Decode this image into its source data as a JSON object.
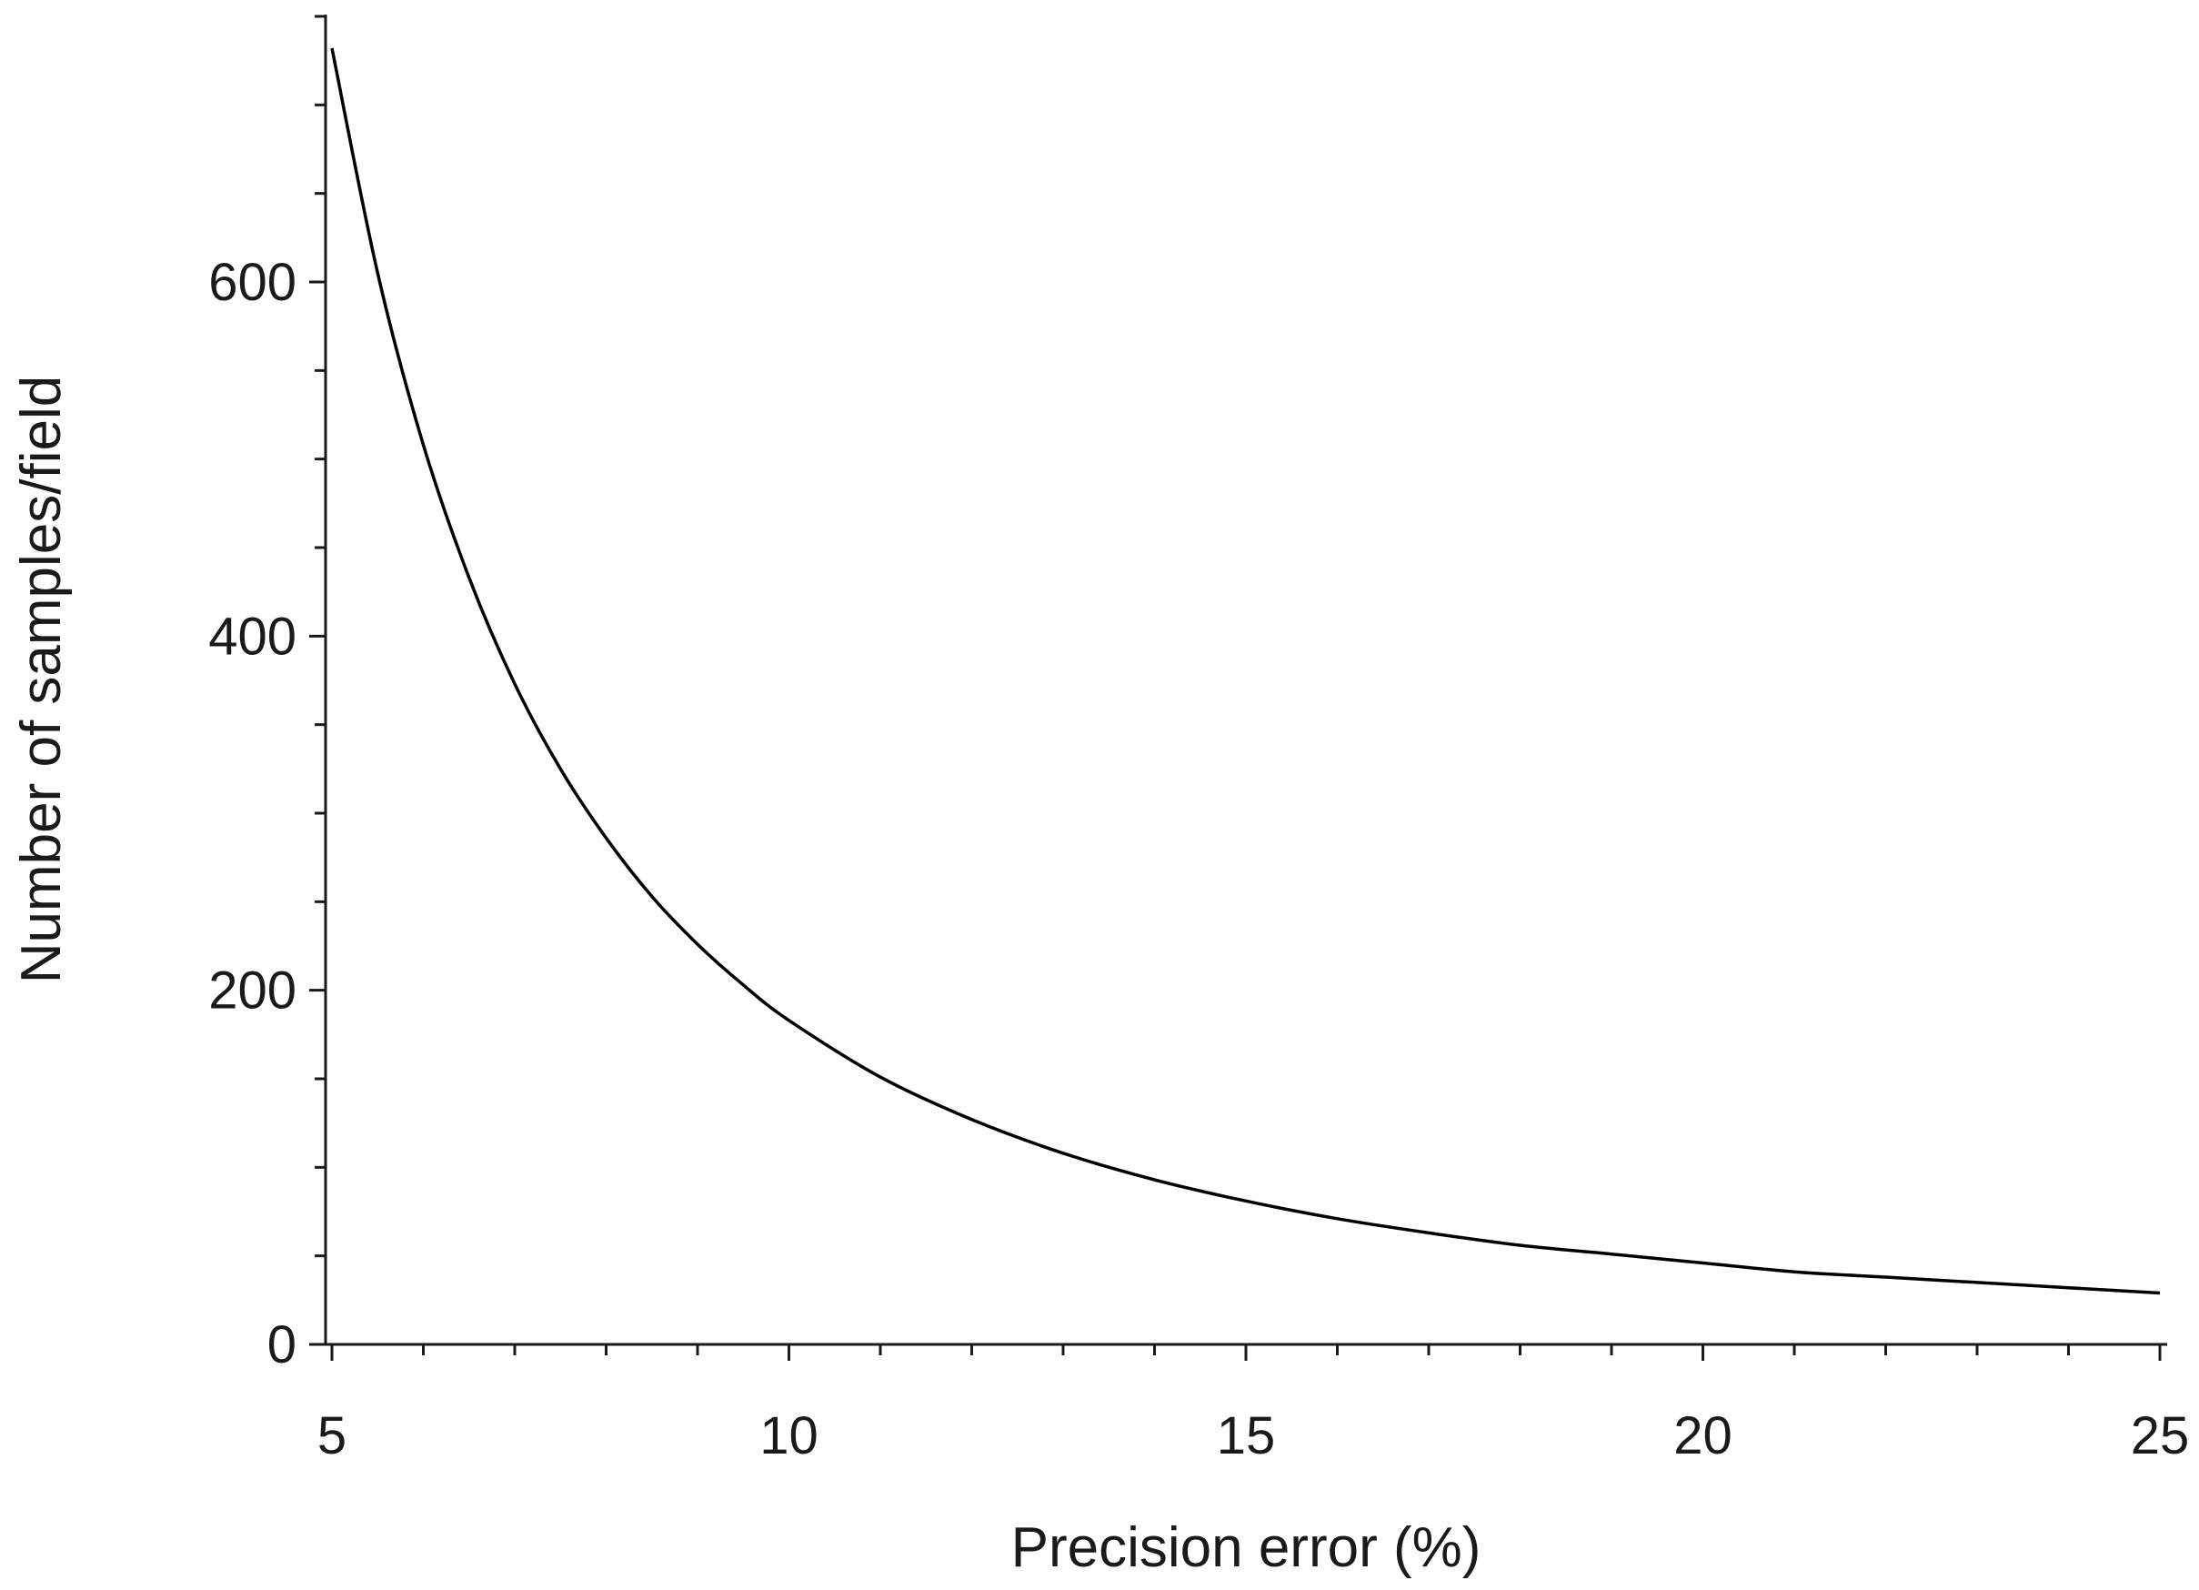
{
  "chart_data": {
    "type": "line",
    "title": "",
    "xlabel": "Precision error (%)",
    "ylabel": "Number of samples/field",
    "xlim": [
      5,
      25
    ],
    "ylim": [
      0,
      750
    ],
    "x_ticks_major": [
      5,
      10,
      15,
      20,
      25
    ],
    "x_ticks_minor_step": 1,
    "y_ticks_major": [
      0,
      200,
      400,
      600
    ],
    "y_ticks_minor_step": 50,
    "grid": false,
    "series": [
      {
        "color": "#000000",
        "x": [
          5,
          5.5,
          6,
          6.5,
          7,
          7.5,
          8,
          8.5,
          9,
          9.5,
          10,
          11,
          12,
          13,
          14,
          15,
          16,
          17,
          18,
          19,
          20,
          21,
          22,
          23,
          24,
          25
        ],
        "y": [
          732,
          605,
          508,
          433,
          373,
          325,
          286,
          253,
          226,
          203,
          183,
          151,
          127,
          108,
          93,
          81,
          71,
          63,
          56,
          51,
          46,
          41,
          38,
          35,
          32,
          29
        ]
      }
    ]
  }
}
